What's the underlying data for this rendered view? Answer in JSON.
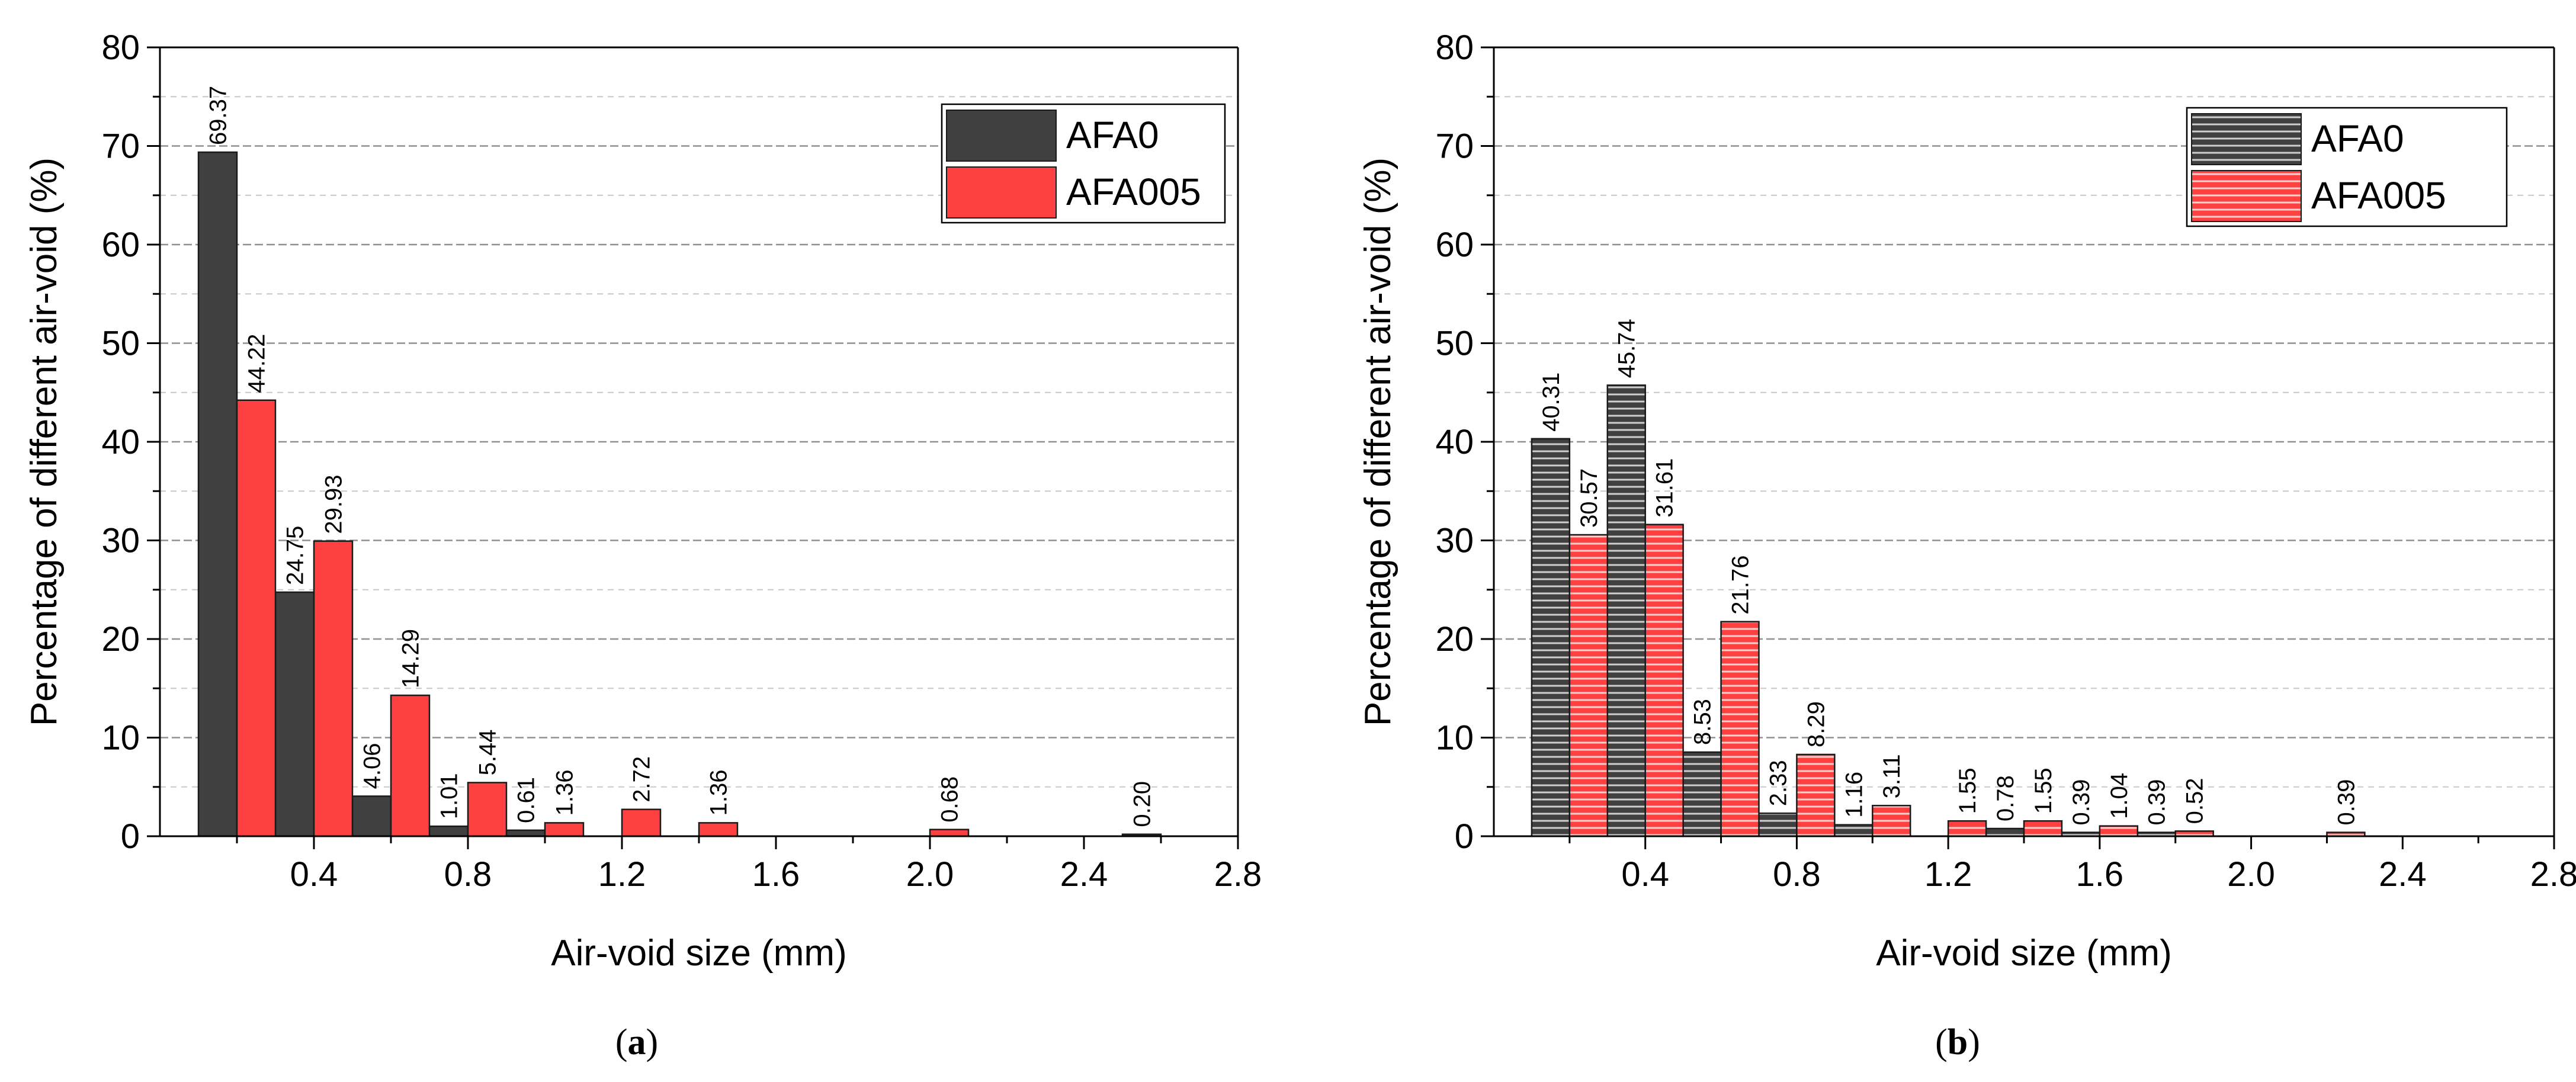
{
  "panels": [
    {
      "id": "a",
      "caption": "a",
      "chart_data": {
        "type": "bar",
        "xlabel": "Air-void size (mm)",
        "ylabel": "Percentage of different air-void (%)",
        "xlim": [
          0,
          2.8
        ],
        "ylim": [
          0,
          80
        ],
        "x_ticks": [
          "0.4",
          "0.8",
          "1.2",
          "1.6",
          "2.0",
          "2.4",
          "2.8"
        ],
        "y_ticks": [
          "0",
          "10",
          "20",
          "30",
          "40",
          "50",
          "60",
          "70",
          "80"
        ],
        "bin_width": 0.2,
        "bin_centers": [
          0.2,
          0.4,
          0.6,
          0.8,
          1.0,
          1.2,
          1.4,
          1.6,
          1.8,
          2.0,
          2.2,
          2.4,
          2.6
        ],
        "legend_position": "top-right",
        "series": [
          {
            "name": "AFA0",
            "color": "#404040",
            "values": [
              69.37,
              24.75,
              4.06,
              1.01,
              0.61,
              0,
              0,
              0,
              0,
              0,
              0,
              0,
              0.2
            ],
            "labels": [
              "69.37",
              "24.75",
              "4.06",
              "1.01",
              "0.61",
              "",
              "",
              "",
              "",
              "",
              "",
              "",
              "0.20"
            ]
          },
          {
            "name": "AFA005",
            "color": "#ff4040",
            "values": [
              44.22,
              29.93,
              14.29,
              5.44,
              1.36,
              2.72,
              1.36,
              0,
              0,
              0.68,
              0,
              0,
              0
            ],
            "labels": [
              "44.22",
              "29.93",
              "14.29",
              "5.44",
              "1.36",
              "2.72",
              "1.36",
              "",
              "",
              "0.68",
              "",
              "",
              ""
            ]
          }
        ]
      }
    },
    {
      "id": "b",
      "caption": "b",
      "chart_data": {
        "type": "bar",
        "xlabel": "Air-void size (mm)",
        "ylabel": "Percentage of different air-void (%)",
        "xlim": [
          0,
          2.8
        ],
        "ylim": [
          0,
          80
        ],
        "x_ticks": [
          "0.4",
          "0.8",
          "1.2",
          "1.6",
          "2.0",
          "2.4",
          "2.8"
        ],
        "y_ticks": [
          "0",
          "10",
          "20",
          "30",
          "40",
          "50",
          "60",
          "70",
          "80"
        ],
        "bin_width": 0.2,
        "bin_centers": [
          0.2,
          0.4,
          0.6,
          0.8,
          1.0,
          1.2,
          1.4,
          1.6,
          1.8,
          2.0,
          2.2,
          2.4,
          2.6
        ],
        "legend_position": "top-right",
        "hatched": true,
        "series": [
          {
            "name": "AFA0",
            "color": "#404040",
            "values": [
              40.31,
              45.74,
              8.53,
              2.33,
              1.16,
              0,
              0.78,
              0.39,
              0.39,
              0,
              0,
              0,
              0
            ],
            "labels": [
              "40.31",
              "45.74",
              "8.53",
              "2.33",
              "1.16",
              "",
              "0.78",
              "0.39",
              "0.39",
              "",
              "",
              "",
              ""
            ]
          },
          {
            "name": "AFA005",
            "color": "#ff4040",
            "values": [
              30.57,
              31.61,
              21.76,
              8.29,
              3.11,
              1.55,
              1.55,
              1.04,
              0.52,
              0,
              0.39,
              0,
              0
            ],
            "labels": [
              "30.57",
              "31.61",
              "21.76",
              "8.29",
              "3.11",
              "1.55",
              "1.55",
              "1.04",
              "0.52",
              "",
              "0.39",
              "",
              ""
            ]
          }
        ]
      }
    }
  ]
}
